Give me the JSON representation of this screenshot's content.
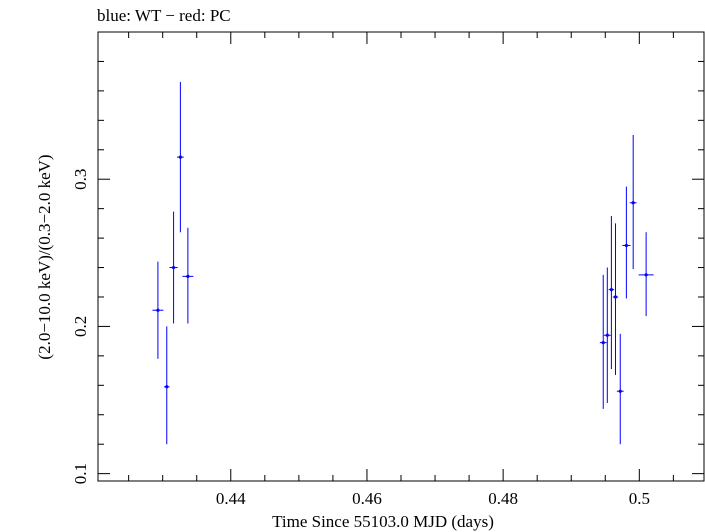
{
  "chart_data": {
    "type": "scatter",
    "title": "blue: WT − red: PC",
    "xlabel": "Time Since 55103.0 MJD (days)",
    "ylabel": "(2.0−10.0 keV)/(0.3−2.0 keV)",
    "xlim": [
      0.4205,
      0.5095
    ],
    "ylim": [
      0.095,
      0.4
    ],
    "xticks": [
      0.44,
      0.46,
      0.48,
      0.5
    ],
    "xtick_labels": [
      "0.44",
      "0.46",
      "0.48",
      "0.5"
    ],
    "yticks": [
      0.1,
      0.2,
      0.3
    ],
    "ytick_labels": [
      "0.1",
      "0.2",
      "0.3"
    ],
    "grid": false,
    "series": [
      {
        "name": "WT",
        "color": "#0000ff",
        "points": [
          {
            "x": 0.4293,
            "y": 0.211,
            "xerr": 0.0008,
            "ylo": 0.178,
            "yhi": 0.244
          },
          {
            "x": 0.4306,
            "y": 0.159,
            "xerr": 0.0004,
            "ylo": 0.12,
            "yhi": 0.2
          },
          {
            "x": 0.4316,
            "y": 0.24,
            "xerr": 0.0006,
            "ylo": 0.202,
            "yhi": 0.278
          },
          {
            "x": 0.4326,
            "y": 0.315,
            "xerr": 0.0005,
            "ylo": 0.264,
            "yhi": 0.366
          },
          {
            "x": 0.4337,
            "y": 0.234,
            "xerr": 0.0008,
            "ylo": 0.202,
            "yhi": 0.267
          },
          {
            "x": 0.4947,
            "y": 0.189,
            "xerr": 0.0005,
            "ylo": 0.144,
            "yhi": 0.235
          },
          {
            "x": 0.4953,
            "y": 0.194,
            "xerr": 0.0005,
            "ylo": 0.148,
            "yhi": 0.24
          },
          {
            "x": 0.4959,
            "y": 0.225,
            "xerr": 0.0004,
            "ylo": 0.171,
            "yhi": 0.275
          },
          {
            "x": 0.4965,
            "y": 0.22,
            "xerr": 0.0004,
            "ylo": 0.167,
            "yhi": 0.27
          },
          {
            "x": 0.4972,
            "y": 0.156,
            "xerr": 0.0005,
            "ylo": 0.12,
            "yhi": 0.195
          },
          {
            "x": 0.4981,
            "y": 0.255,
            "xerr": 0.0006,
            "ylo": 0.219,
            "yhi": 0.295
          },
          {
            "x": 0.4991,
            "y": 0.284,
            "xerr": 0.0005,
            "ylo": 0.239,
            "yhi": 0.33
          },
          {
            "x": 0.501,
            "y": 0.235,
            "xerr": 0.0011,
            "ylo": 0.207,
            "yhi": 0.264
          }
        ]
      }
    ]
  }
}
